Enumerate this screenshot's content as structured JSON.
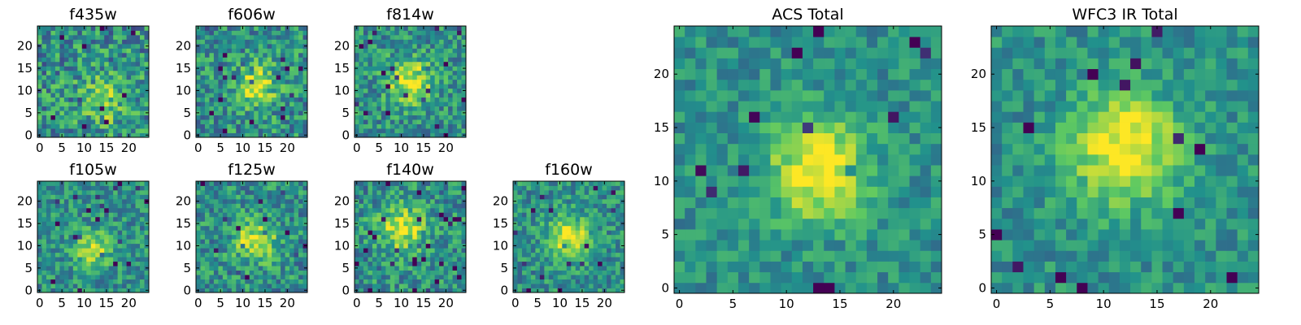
{
  "chart_data": [
    {
      "type": "heatmap",
      "title": "f435w",
      "xticks": [
        "0",
        "5",
        "10",
        "15",
        "20"
      ],
      "yticks": [
        "0",
        "5",
        "10",
        "15",
        "20"
      ],
      "xlim": [
        -0.5,
        24.5
      ],
      "ylim": [
        -0.5,
        24.5
      ],
      "grid_size": 25,
      "peak_center": [
        15,
        8
      ],
      "peak_width": 5.5,
      "peak_strength": 0.28,
      "noise": 0.55,
      "seed": 11
    },
    {
      "type": "heatmap",
      "title": "f606w",
      "xticks": [
        "0",
        "5",
        "10",
        "15",
        "20"
      ],
      "yticks": [
        "0",
        "5",
        "10",
        "15",
        "20"
      ],
      "xlim": [
        -0.5,
        24.5
      ],
      "ylim": [
        -0.5,
        24.5
      ],
      "grid_size": 25,
      "peak_center": [
        13,
        11
      ],
      "peak_width": 5.0,
      "peak_strength": 0.38,
      "noise": 0.5,
      "seed": 23
    },
    {
      "type": "heatmap",
      "title": "f814w",
      "xticks": [
        "0",
        "5",
        "10",
        "15",
        "20"
      ],
      "yticks": [
        "0",
        "5",
        "10",
        "15",
        "20"
      ],
      "xlim": [
        -0.5,
        24.5
      ],
      "ylim": [
        -0.5,
        24.5
      ],
      "grid_size": 25,
      "peak_center": [
        12,
        12
      ],
      "peak_width": 5.0,
      "peak_strength": 0.45,
      "noise": 0.45,
      "seed": 37
    },
    {
      "type": "heatmap",
      "title": "f105w",
      "xticks": [
        "0",
        "5",
        "10",
        "15",
        "20"
      ],
      "yticks": [
        "0",
        "5",
        "10",
        "15",
        "20"
      ],
      "xlim": [
        -0.5,
        24.5
      ],
      "ylim": [
        -0.5,
        24.5
      ],
      "grid_size": 25,
      "peak_center": [
        12,
        9
      ],
      "peak_width": 4.0,
      "peak_strength": 0.4,
      "noise": 0.4,
      "seed": 41
    },
    {
      "type": "heatmap",
      "title": "f125w",
      "xticks": [
        "0",
        "5",
        "10",
        "15",
        "20"
      ],
      "yticks": [
        "0",
        "5",
        "10",
        "15",
        "20"
      ],
      "xlim": [
        -0.5,
        24.5
      ],
      "ylim": [
        -0.5,
        24.5
      ],
      "grid_size": 25,
      "peak_center": [
        13,
        11
      ],
      "peak_width": 4.5,
      "peak_strength": 0.45,
      "noise": 0.45,
      "seed": 53
    },
    {
      "type": "heatmap",
      "title": "f140w",
      "xticks": [
        "0",
        "5",
        "10",
        "15",
        "20"
      ],
      "yticks": [
        "0",
        "5",
        "10",
        "15",
        "20"
      ],
      "xlim": [
        -0.5,
        24.5
      ],
      "ylim": [
        -0.5,
        24.5
      ],
      "grid_size": 25,
      "peak_center": [
        10,
        14
      ],
      "peak_width": 5.0,
      "peak_strength": 0.45,
      "noise": 0.45,
      "seed": 67
    },
    {
      "type": "heatmap",
      "title": "f160w",
      "xticks": [
        "0",
        "5",
        "10",
        "15",
        "20"
      ],
      "yticks": [
        "0",
        "5",
        "10",
        "15",
        "20"
      ],
      "xlim": [
        -0.5,
        24.5
      ],
      "ylim": [
        -0.5,
        24.5
      ],
      "grid_size": 25,
      "peak_center": [
        12,
        12
      ],
      "peak_width": 4.5,
      "peak_strength": 0.5,
      "noise": 0.4,
      "seed": 79
    },
    {
      "type": "heatmap",
      "title": "ACS Total",
      "xticks": [
        "0",
        "5",
        "10",
        "15",
        "20"
      ],
      "yticks": [
        "0",
        "5",
        "10",
        "15",
        "20"
      ],
      "xlim": [
        -0.5,
        24.5
      ],
      "ylim": [
        -0.5,
        24.5
      ],
      "grid_size": 25,
      "peak_center": [
        13,
        11
      ],
      "peak_width": 4.5,
      "peak_strength": 0.55,
      "noise": 0.3,
      "seed": 97
    },
    {
      "type": "heatmap",
      "title": "WFC3 IR Total",
      "xticks": [
        "0",
        "5",
        "10",
        "15",
        "20"
      ],
      "yticks": [
        "0",
        "5",
        "10",
        "15",
        "20"
      ],
      "xlim": [
        -0.5,
        24.5
      ],
      "ylim": [
        -0.5,
        24.5
      ],
      "grid_size": 25,
      "peak_center": [
        12,
        13
      ],
      "peak_width": 5.0,
      "peak_strength": 0.55,
      "noise": 0.3,
      "seed": 113
    }
  ],
  "colormap": [
    "#440154",
    "#3b528b",
    "#21918c",
    "#5ec962",
    "#fde725"
  ]
}
